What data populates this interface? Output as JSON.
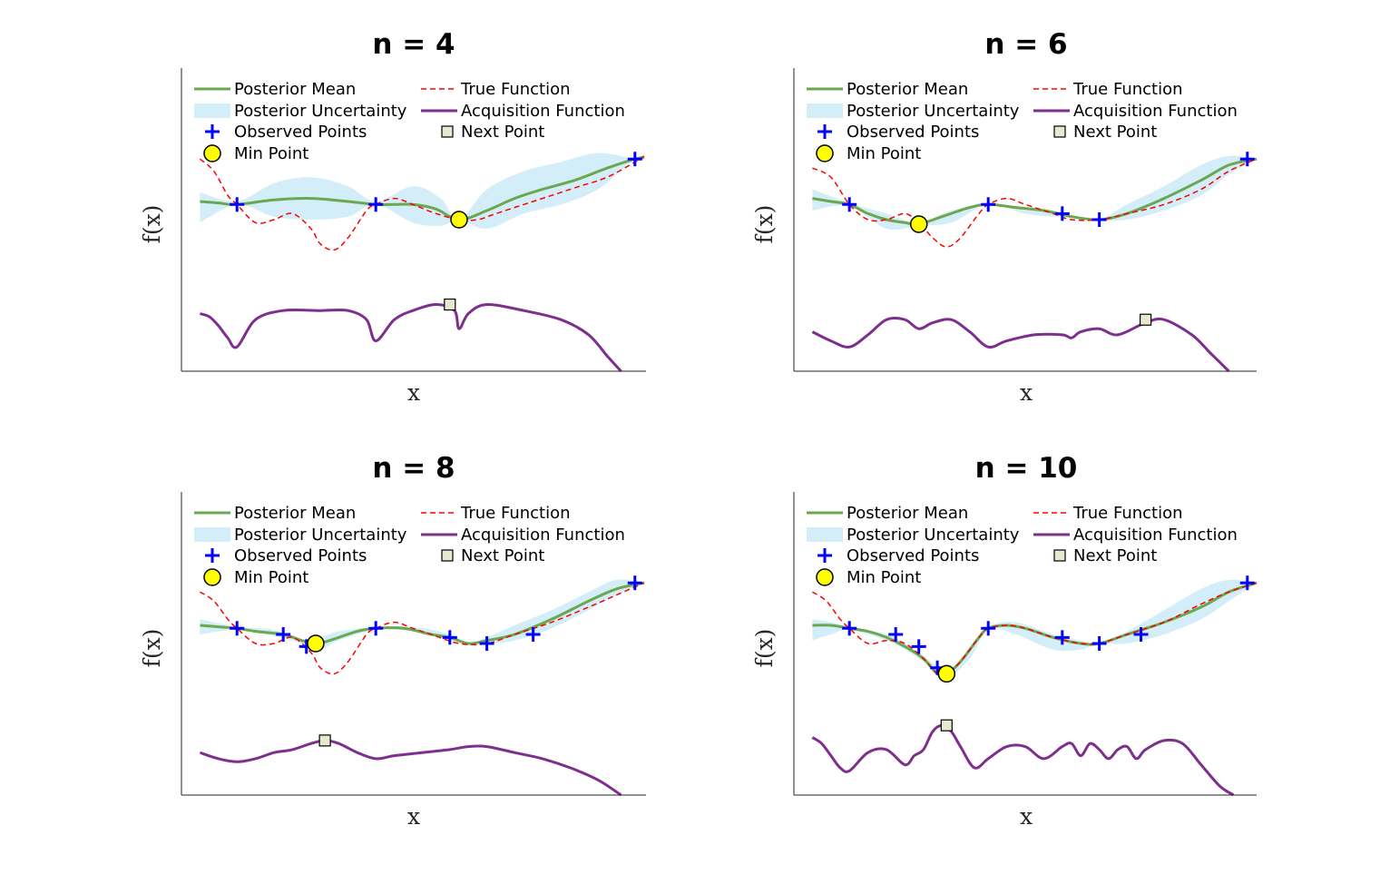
{
  "colors": {
    "posterior_mean": "#6aa84f",
    "uncertainty": "#d3eef8",
    "true_function": "#ff0000",
    "acquisition": "#7e2f8e",
    "observed": "#0000ff",
    "min_point": "#ffff00",
    "next_point": "#e8e8d0",
    "axis": "#262626"
  },
  "legend": {
    "posterior_mean": "Posterior Mean",
    "posterior_uncertainty": "Posterior Uncertainty",
    "observed_points": "Observed Points",
    "min_point": "Min Point",
    "true_function": "True Function",
    "acquisition_function": "Acquisition Function",
    "next_point": "Next Point"
  },
  "chart_data": [
    {
      "type": "line",
      "title": "n = 4",
      "xlabel": "x",
      "ylabel": "f(x)",
      "xlim": [
        0,
        1
      ],
      "ylim": [
        0,
        1
      ],
      "grid": false,
      "legend_position": "top",
      "series": [
        {
          "name": "Posterior Mean",
          "x": [
            0.04,
            0.08,
            0.12,
            0.2,
            0.28,
            0.36,
            0.42,
            0.46,
            0.5,
            0.55,
            0.6,
            0.66,
            0.72,
            0.78,
            0.85,
            0.92,
            0.98,
            1.0
          ],
          "y": [
            0.56,
            0.555,
            0.55,
            0.565,
            0.57,
            0.56,
            0.55,
            0.55,
            0.55,
            0.535,
            0.5,
            0.53,
            0.57,
            0.6,
            0.63,
            0.67,
            0.7,
            0.705
          ]
        },
        {
          "name": "True Function",
          "x": [
            0.04,
            0.07,
            0.1,
            0.12,
            0.16,
            0.2,
            0.24,
            0.28,
            0.3,
            0.33,
            0.36,
            0.4,
            0.42,
            0.46,
            0.5,
            0.55,
            0.6,
            0.64,
            0.68,
            0.74,
            0.8,
            0.86,
            0.92,
            0.98,
            1.0
          ],
          "y": [
            0.7,
            0.66,
            0.58,
            0.55,
            0.49,
            0.5,
            0.52,
            0.47,
            0.42,
            0.4,
            0.44,
            0.53,
            0.55,
            0.57,
            0.55,
            0.52,
            0.5,
            0.5,
            0.52,
            0.55,
            0.58,
            0.61,
            0.64,
            0.69,
            0.71
          ],
          "style": "dashed"
        },
        {
          "name": "Posterior Uncertainty",
          "x": [
            0.04,
            0.12,
            0.2,
            0.28,
            0.36,
            0.42,
            0.5,
            0.56,
            0.6,
            0.66,
            0.74,
            0.82,
            0.9,
            0.98,
            1.0
          ],
          "upper": [
            0.59,
            0.56,
            0.62,
            0.64,
            0.61,
            0.56,
            0.61,
            0.57,
            0.5,
            0.6,
            0.66,
            0.69,
            0.72,
            0.7,
            0.7
          ],
          "lower": [
            0.49,
            0.55,
            0.51,
            0.5,
            0.51,
            0.55,
            0.49,
            0.48,
            0.5,
            0.47,
            0.52,
            0.55,
            0.6,
            0.7,
            0.7
          ]
        },
        {
          "name": "Acquisition Function",
          "x": [
            0.04,
            0.06,
            0.08,
            0.1,
            0.12,
            0.16,
            0.22,
            0.3,
            0.36,
            0.4,
            0.42,
            0.46,
            0.5,
            0.55,
            0.59,
            0.6,
            0.62,
            0.66,
            0.74,
            0.82,
            0.88,
            0.92,
            0.95
          ],
          "y": [
            0.19,
            0.18,
            0.15,
            0.11,
            0.08,
            0.17,
            0.2,
            0.2,
            0.2,
            0.17,
            0.1,
            0.17,
            0.2,
            0.22,
            0.2,
            0.14,
            0.19,
            0.22,
            0.2,
            0.17,
            0.12,
            0.05,
            0.0
          ]
        }
      ],
      "observed": {
        "x": [
          0.12,
          0.42,
          0.98
        ],
        "y": [
          0.55,
          0.55,
          0.7
        ]
      },
      "min_point": {
        "x": 0.6,
        "y": 0.5
      },
      "next_point": {
        "x": 0.58,
        "y": 0.22
      }
    },
    {
      "type": "line",
      "title": "n = 6",
      "xlabel": "x",
      "ylabel": "f(x)",
      "xlim": [
        0,
        1
      ],
      "ylim": [
        0,
        1
      ],
      "grid": false,
      "legend_position": "top",
      "series": [
        {
          "name": "Posterior Mean",
          "x": [
            0.04,
            0.08,
            0.12,
            0.16,
            0.2,
            0.24,
            0.27,
            0.32,
            0.38,
            0.42,
            0.48,
            0.54,
            0.6,
            0.66,
            0.72,
            0.8,
            0.88,
            0.94,
            1.0
          ],
          "y": [
            0.57,
            0.56,
            0.55,
            0.52,
            0.5,
            0.49,
            0.485,
            0.51,
            0.54,
            0.55,
            0.54,
            0.53,
            0.51,
            0.5,
            0.52,
            0.57,
            0.63,
            0.68,
            0.7
          ]
        },
        {
          "name": "True Function",
          "x": [
            0.04,
            0.08,
            0.12,
            0.16,
            0.2,
            0.24,
            0.27,
            0.3,
            0.33,
            0.36,
            0.4,
            0.42,
            0.46,
            0.5,
            0.56,
            0.6,
            0.66,
            0.72,
            0.8,
            0.88,
            0.94,
            1.0
          ],
          "y": [
            0.67,
            0.64,
            0.55,
            0.5,
            0.5,
            0.52,
            0.49,
            0.44,
            0.41,
            0.44,
            0.52,
            0.55,
            0.57,
            0.55,
            0.52,
            0.5,
            0.5,
            0.52,
            0.55,
            0.6,
            0.66,
            0.7
          ],
          "style": "dashed"
        },
        {
          "name": "Posterior Uncertainty",
          "x": [
            0.04,
            0.12,
            0.2,
            0.27,
            0.34,
            0.42,
            0.5,
            0.56,
            0.6,
            0.66,
            0.72,
            0.8,
            0.88,
            0.94,
            1.0
          ],
          "upper": [
            0.6,
            0.555,
            0.52,
            0.49,
            0.53,
            0.55,
            0.54,
            0.53,
            0.51,
            0.5,
            0.55,
            0.61,
            0.68,
            0.71,
            0.7
          ],
          "lower": [
            0.53,
            0.545,
            0.47,
            0.48,
            0.49,
            0.55,
            0.52,
            0.51,
            0.51,
            0.5,
            0.5,
            0.53,
            0.58,
            0.65,
            0.7
          ]
        },
        {
          "name": "Acquisition Function",
          "x": [
            0.04,
            0.08,
            0.12,
            0.16,
            0.2,
            0.24,
            0.27,
            0.3,
            0.34,
            0.38,
            0.42,
            0.46,
            0.52,
            0.58,
            0.6,
            0.62,
            0.66,
            0.7,
            0.76,
            0.8,
            0.86,
            0.9,
            0.94
          ],
          "y": [
            0.13,
            0.1,
            0.08,
            0.12,
            0.17,
            0.17,
            0.14,
            0.16,
            0.17,
            0.13,
            0.08,
            0.1,
            0.12,
            0.12,
            0.11,
            0.13,
            0.14,
            0.12,
            0.16,
            0.17,
            0.12,
            0.06,
            0.0
          ]
        }
      ],
      "observed": {
        "x": [
          0.12,
          0.42,
          0.58,
          0.66,
          0.98
        ],
        "y": [
          0.55,
          0.55,
          0.52,
          0.5,
          0.7
        ]
      },
      "min_point": {
        "x": 0.27,
        "y": 0.485
      },
      "next_point": {
        "x": 0.76,
        "y": 0.17
      }
    },
    {
      "type": "line",
      "title": "n = 8",
      "xlabel": "x",
      "ylabel": "f(x)",
      "xlim": [
        0,
        1
      ],
      "ylim": [
        0,
        1
      ],
      "grid": false,
      "legend_position": "top",
      "series": [
        {
          "name": "Posterior Mean",
          "x": [
            0.04,
            0.08,
            0.12,
            0.16,
            0.22,
            0.26,
            0.29,
            0.32,
            0.38,
            0.42,
            0.48,
            0.54,
            0.58,
            0.62,
            0.66,
            0.72,
            0.8,
            0.88,
            0.94,
            1.0
          ],
          "y": [
            0.56,
            0.555,
            0.55,
            0.54,
            0.53,
            0.51,
            0.5,
            0.51,
            0.54,
            0.55,
            0.55,
            0.53,
            0.52,
            0.5,
            0.51,
            0.53,
            0.58,
            0.64,
            0.68,
            0.7
          ]
        },
        {
          "name": "True Function",
          "x": [
            0.04,
            0.07,
            0.1,
            0.12,
            0.16,
            0.2,
            0.24,
            0.28,
            0.3,
            0.33,
            0.36,
            0.4,
            0.42,
            0.46,
            0.5,
            0.54,
            0.6,
            0.66,
            0.72,
            0.8,
            0.88,
            0.94,
            1.0
          ],
          "y": [
            0.67,
            0.64,
            0.58,
            0.55,
            0.5,
            0.5,
            0.52,
            0.47,
            0.42,
            0.4,
            0.44,
            0.53,
            0.55,
            0.57,
            0.55,
            0.53,
            0.5,
            0.5,
            0.53,
            0.57,
            0.62,
            0.66,
            0.7
          ],
          "style": "dashed"
        },
        {
          "name": "Posterior Uncertainty",
          "x": [
            0.04,
            0.12,
            0.2,
            0.26,
            0.3,
            0.34,
            0.42,
            0.5,
            0.58,
            0.62,
            0.66,
            0.72,
            0.8,
            0.88,
            0.94,
            1.0
          ],
          "upper": [
            0.58,
            0.555,
            0.545,
            0.51,
            0.52,
            0.54,
            0.555,
            0.555,
            0.53,
            0.5,
            0.52,
            0.56,
            0.61,
            0.67,
            0.71,
            0.7
          ],
          "lower": [
            0.53,
            0.545,
            0.525,
            0.5,
            0.48,
            0.51,
            0.545,
            0.54,
            0.51,
            0.5,
            0.5,
            0.51,
            0.55,
            0.61,
            0.66,
            0.7
          ]
        },
        {
          "name": "Acquisition Function",
          "x": [
            0.04,
            0.08,
            0.12,
            0.16,
            0.2,
            0.24,
            0.28,
            0.31,
            0.34,
            0.38,
            0.42,
            0.46,
            0.52,
            0.58,
            0.62,
            0.66,
            0.72,
            0.78,
            0.84,
            0.9,
            0.95
          ],
          "y": [
            0.14,
            0.12,
            0.11,
            0.12,
            0.14,
            0.15,
            0.17,
            0.18,
            0.17,
            0.14,
            0.12,
            0.13,
            0.14,
            0.15,
            0.16,
            0.16,
            0.14,
            0.12,
            0.09,
            0.05,
            0.0
          ]
        }
      ],
      "observed": {
        "x": [
          0.12,
          0.22,
          0.27,
          0.42,
          0.58,
          0.66,
          0.76,
          0.98
        ],
        "y": [
          0.55,
          0.53,
          0.49,
          0.55,
          0.52,
          0.5,
          0.53,
          0.7
        ]
      },
      "min_point": {
        "x": 0.29,
        "y": 0.5
      },
      "next_point": {
        "x": 0.31,
        "y": 0.18
      }
    },
    {
      "type": "line",
      "title": "n = 10",
      "xlabel": "x",
      "ylabel": "f(x)",
      "xlim": [
        0,
        1
      ],
      "ylim": [
        0,
        1
      ],
      "grid": false,
      "legend_position": "top",
      "series": [
        {
          "name": "Posterior Mean",
          "x": [
            0.04,
            0.08,
            0.12,
            0.16,
            0.2,
            0.24,
            0.28,
            0.31,
            0.33,
            0.36,
            0.4,
            0.42,
            0.46,
            0.5,
            0.56,
            0.62,
            0.66,
            0.72,
            0.8,
            0.88,
            0.94,
            1.0
          ],
          "y": [
            0.56,
            0.56,
            0.55,
            0.54,
            0.52,
            0.49,
            0.45,
            0.4,
            0.4,
            0.44,
            0.52,
            0.55,
            0.56,
            0.55,
            0.52,
            0.5,
            0.5,
            0.53,
            0.57,
            0.62,
            0.67,
            0.7
          ]
        },
        {
          "name": "True Function",
          "x": [
            0.04,
            0.07,
            0.1,
            0.12,
            0.16,
            0.2,
            0.24,
            0.28,
            0.31,
            0.33,
            0.36,
            0.4,
            0.42,
            0.46,
            0.5,
            0.56,
            0.62,
            0.66,
            0.72,
            0.8,
            0.88,
            0.94,
            1.0
          ],
          "y": [
            0.67,
            0.64,
            0.58,
            0.55,
            0.5,
            0.51,
            0.5,
            0.45,
            0.4,
            0.4,
            0.44,
            0.52,
            0.55,
            0.56,
            0.55,
            0.52,
            0.5,
            0.5,
            0.53,
            0.57,
            0.63,
            0.67,
            0.7
          ],
          "style": "dashed"
        },
        {
          "name": "Posterior Uncertainty",
          "x": [
            0.04,
            0.08,
            0.12,
            0.2,
            0.24,
            0.28,
            0.33,
            0.38,
            0.42,
            0.48,
            0.56,
            0.62,
            0.66,
            0.72,
            0.8,
            0.88,
            0.94,
            1.0
          ],
          "upper": [
            0.58,
            0.57,
            0.555,
            0.53,
            0.5,
            0.46,
            0.41,
            0.48,
            0.555,
            0.57,
            0.53,
            0.51,
            0.5,
            0.54,
            0.61,
            0.68,
            0.71,
            0.7
          ],
          "lower": [
            0.51,
            0.53,
            0.545,
            0.51,
            0.48,
            0.44,
            0.39,
            0.45,
            0.545,
            0.53,
            0.48,
            0.48,
            0.5,
            0.5,
            0.53,
            0.58,
            0.64,
            0.7
          ]
        },
        {
          "name": "Acquisition Function",
          "x": [
            0.04,
            0.06,
            0.08,
            0.1,
            0.12,
            0.16,
            0.2,
            0.24,
            0.26,
            0.28,
            0.3,
            0.32,
            0.34,
            0.36,
            0.39,
            0.42,
            0.46,
            0.5,
            0.54,
            0.58,
            0.6,
            0.62,
            0.64,
            0.66,
            0.68,
            0.7,
            0.72,
            0.74,
            0.76,
            0.8,
            0.84,
            0.88,
            0.92,
            0.95
          ],
          "y": [
            0.19,
            0.17,
            0.13,
            0.09,
            0.08,
            0.14,
            0.15,
            0.1,
            0.13,
            0.15,
            0.21,
            0.23,
            0.21,
            0.16,
            0.09,
            0.12,
            0.16,
            0.16,
            0.12,
            0.16,
            0.17,
            0.13,
            0.17,
            0.15,
            0.12,
            0.15,
            0.16,
            0.12,
            0.15,
            0.18,
            0.17,
            0.1,
            0.03,
            0.0
          ]
        }
      ],
      "observed": {
        "x": [
          0.12,
          0.22,
          0.27,
          0.31,
          0.42,
          0.58,
          0.66,
          0.75,
          0.98
        ],
        "y": [
          0.55,
          0.53,
          0.49,
          0.42,
          0.55,
          0.52,
          0.5,
          0.53,
          0.7
        ]
      },
      "min_point": {
        "x": 0.33,
        "y": 0.4
      },
      "next_point": {
        "x": 0.33,
        "y": 0.23
      }
    }
  ]
}
